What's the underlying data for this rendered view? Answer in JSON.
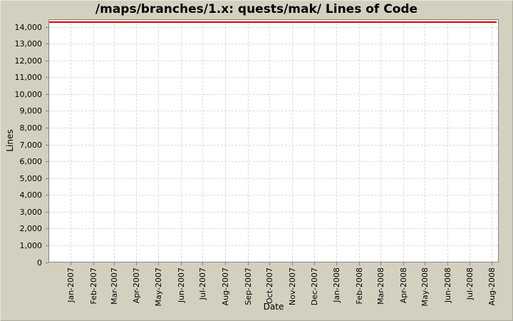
{
  "chart_data": {
    "type": "line",
    "title": "/maps/branches/1.x: quests/mak/ Lines of Code",
    "xlabel": "Date",
    "ylabel": "Lines",
    "x_tick_labels": [
      "Jan-2007",
      "Feb-2007",
      "Mar-2007",
      "Apr-2007",
      "May-2007",
      "Jun-2007",
      "Jul-2007",
      "Aug-2007",
      "Sep-2007",
      "Oct-2007",
      "Nov-2007",
      "Dec-2007",
      "Jan-2008",
      "Feb-2008",
      "Mar-2008",
      "Apr-2008",
      "May-2008",
      "Jun-2008",
      "Jul-2008",
      "Aug-2008"
    ],
    "y_tick_labels": [
      "0",
      "1,000",
      "2,000",
      "3,000",
      "4,000",
      "5,000",
      "6,000",
      "7,000",
      "8,000",
      "9,000",
      "10,000",
      "11,000",
      "12,000",
      "13,000",
      "14,000"
    ],
    "ylim": [
      0,
      14470
    ],
    "x_axis_range": [
      "2006-12-01",
      "2008-08-10"
    ],
    "grid": true,
    "legend_position": "none",
    "series": [
      {
        "name": "lines-of-code",
        "color": "#dd0000",
        "shape": "constant horizontal line across full x-range",
        "value": 14330,
        "x_start": "2006-12-01",
        "x_end": "2008-08-06"
      }
    ],
    "colors": {
      "background": "#d3d0c0",
      "plot_background": "#ffffff",
      "grid": "#d9d9d9",
      "plot_border": "#848484",
      "text": "#000000"
    }
  }
}
